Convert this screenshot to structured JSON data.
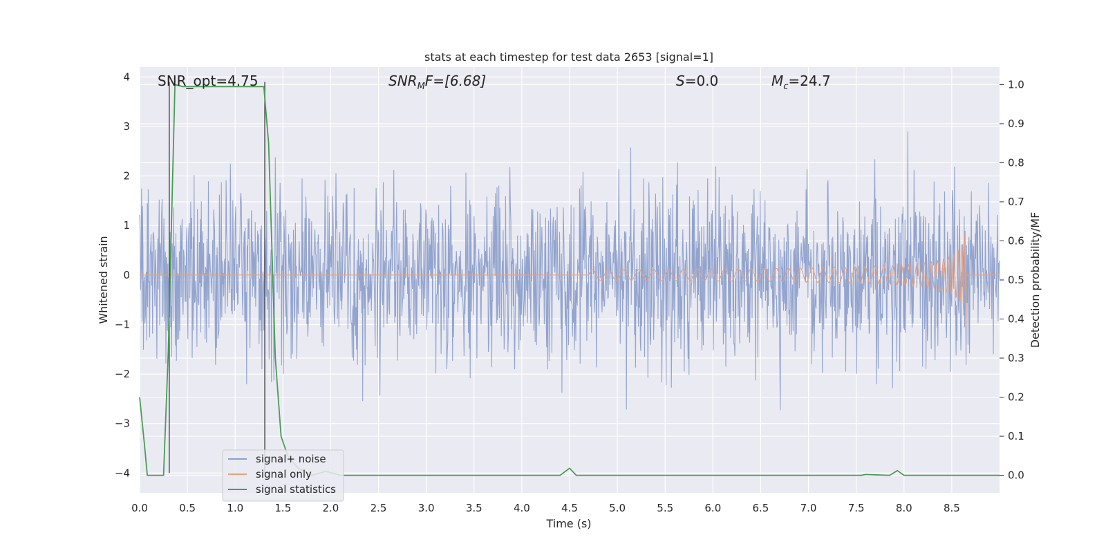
{
  "chart_data": {
    "type": "line",
    "title": "stats at each timestep for test data 2653 [signal=1]",
    "xlabel": "Time (s)",
    "ylabel_left": "Whitened strain",
    "ylabel_right": "Detection probability/MF",
    "xlim": [
      0,
      9.0
    ],
    "ylim_left": [
      -4.4,
      4.2
    ],
    "ylim_right": [
      -0.045,
      1.045
    ],
    "x_ticks": [
      "0.0",
      "0.5",
      "1.0",
      "1.5",
      "2.0",
      "2.5",
      "3.0",
      "3.5",
      "4.0",
      "4.5",
      "5.0",
      "5.5",
      "6.0",
      "6.5",
      "7.0",
      "7.5",
      "8.0",
      "8.5"
    ],
    "y_ticks_left": [
      "−4",
      "−3",
      "−2",
      "−1",
      "0",
      "1",
      "2",
      "3",
      "4"
    ],
    "y_ticks_right": [
      "0.0",
      "0.1",
      "0.2",
      "0.3",
      "0.4",
      "0.5",
      "0.6",
      "0.7",
      "0.8",
      "0.9",
      "1.0"
    ],
    "grid": true,
    "legend_position": "lower-left",
    "annotations": {
      "snr_opt": "SNR_opt=4.75",
      "snr_mf_base": "SNR",
      "snr_mf_sub": "M",
      "snr_mf_rest": "F=[6.68]",
      "s_var": "S",
      "s_rest": "=0.0",
      "mc_var": "M",
      "mc_sub": "c",
      "mc_rest": "=24.7"
    },
    "vertical_markers_x": [
      0.31,
      1.31
    ],
    "series": [
      {
        "name": "signal+ noise",
        "color": "#8da0cb",
        "envelope": {
          "typical_low": -1.9,
          "typical_high": 1.9,
          "peak_low": -4.0,
          "peak_high": 3.85
        }
      },
      {
        "name": "signal only",
        "color": "#e8a07c",
        "description_points": {
          "chirp_start_x": 4.7,
          "chirp_end_x": 8.65,
          "max_amplitude": 1.1
        }
      },
      {
        "name": "signal statistics",
        "color": "#4c9c55",
        "points": [
          [
            0.0,
            0.2
          ],
          [
            0.05,
            0.08
          ],
          [
            0.08,
            0.0
          ],
          [
            0.25,
            0.0
          ],
          [
            0.3,
            0.32
          ],
          [
            0.37,
            1.0
          ],
          [
            0.45,
            0.995
          ],
          [
            1.3,
            0.995
          ],
          [
            1.35,
            0.85
          ],
          [
            1.42,
            0.3
          ],
          [
            1.48,
            0.1
          ],
          [
            1.55,
            0.05
          ],
          [
            1.65,
            0.02
          ],
          [
            1.8,
            0.0
          ],
          [
            1.95,
            0.01
          ],
          [
            2.1,
            0.0
          ],
          [
            4.4,
            0.0
          ],
          [
            4.5,
            0.018
          ],
          [
            4.57,
            0.0
          ],
          [
            7.55,
            0.0
          ],
          [
            7.6,
            0.002
          ],
          [
            7.85,
            0.0
          ],
          [
            7.93,
            0.012
          ],
          [
            8.0,
            0.0
          ],
          [
            9.0,
            0.0
          ]
        ]
      }
    ]
  }
}
